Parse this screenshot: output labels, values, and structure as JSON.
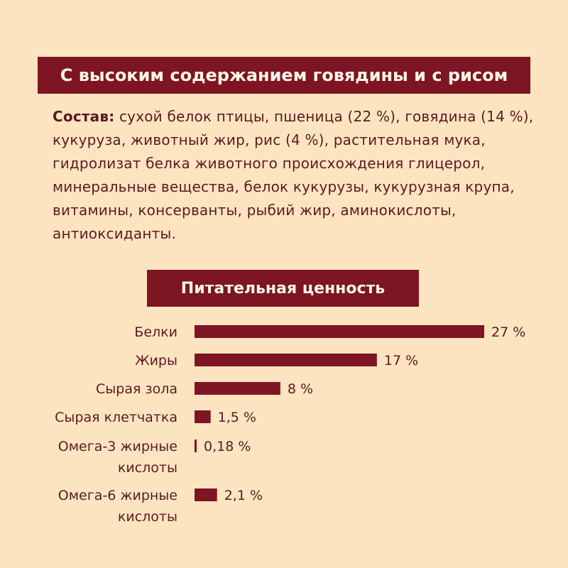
{
  "title": "С высоким содержанием говядины и с рисом",
  "composition": {
    "lead": "Состав:",
    "text": " сухой белок птицы, пшеница (22 %), говядина (14 %), кукуруза, животный жир, рис (4 %), растительная мука, гидролизат белка животного происхождения глицерол, минеральные вещества, белок кукурузы, кукурузная крупа, витамины, консерванты, рыбий жир, аминокислоты, антиоксиданты."
  },
  "nutrition_title": "Питательная ценность",
  "colors": {
    "background": "#fde4c1",
    "accent": "#7d1523",
    "text": "#5a1a1f"
  },
  "chart_data": {
    "type": "bar",
    "orientation": "horizontal",
    "title": "Питательная ценность",
    "unit": "%",
    "categories": [
      "Белки",
      "Жиры",
      "Сырая зола",
      "Сырая клетчатка",
      "Омега-3 жирные кислоты",
      "Омега-6 жирные кислоты"
    ],
    "category_lines": [
      [
        "Белки"
      ],
      [
        "Жиры"
      ],
      [
        "Сырая зола"
      ],
      [
        "Сырая клетчатка"
      ],
      [
        "Омега-3 жирные",
        "кислоты"
      ],
      [
        "Омега-6 жирные",
        "кислоты"
      ]
    ],
    "values": [
      27,
      17,
      8,
      1.5,
      0.18,
      2.1
    ],
    "value_labels": [
      "27 %",
      "17 %",
      "8 %",
      "1,5 %",
      "0,18 %",
      "2,1 %"
    ],
    "xlim": [
      0,
      27
    ],
    "grid": false
  }
}
